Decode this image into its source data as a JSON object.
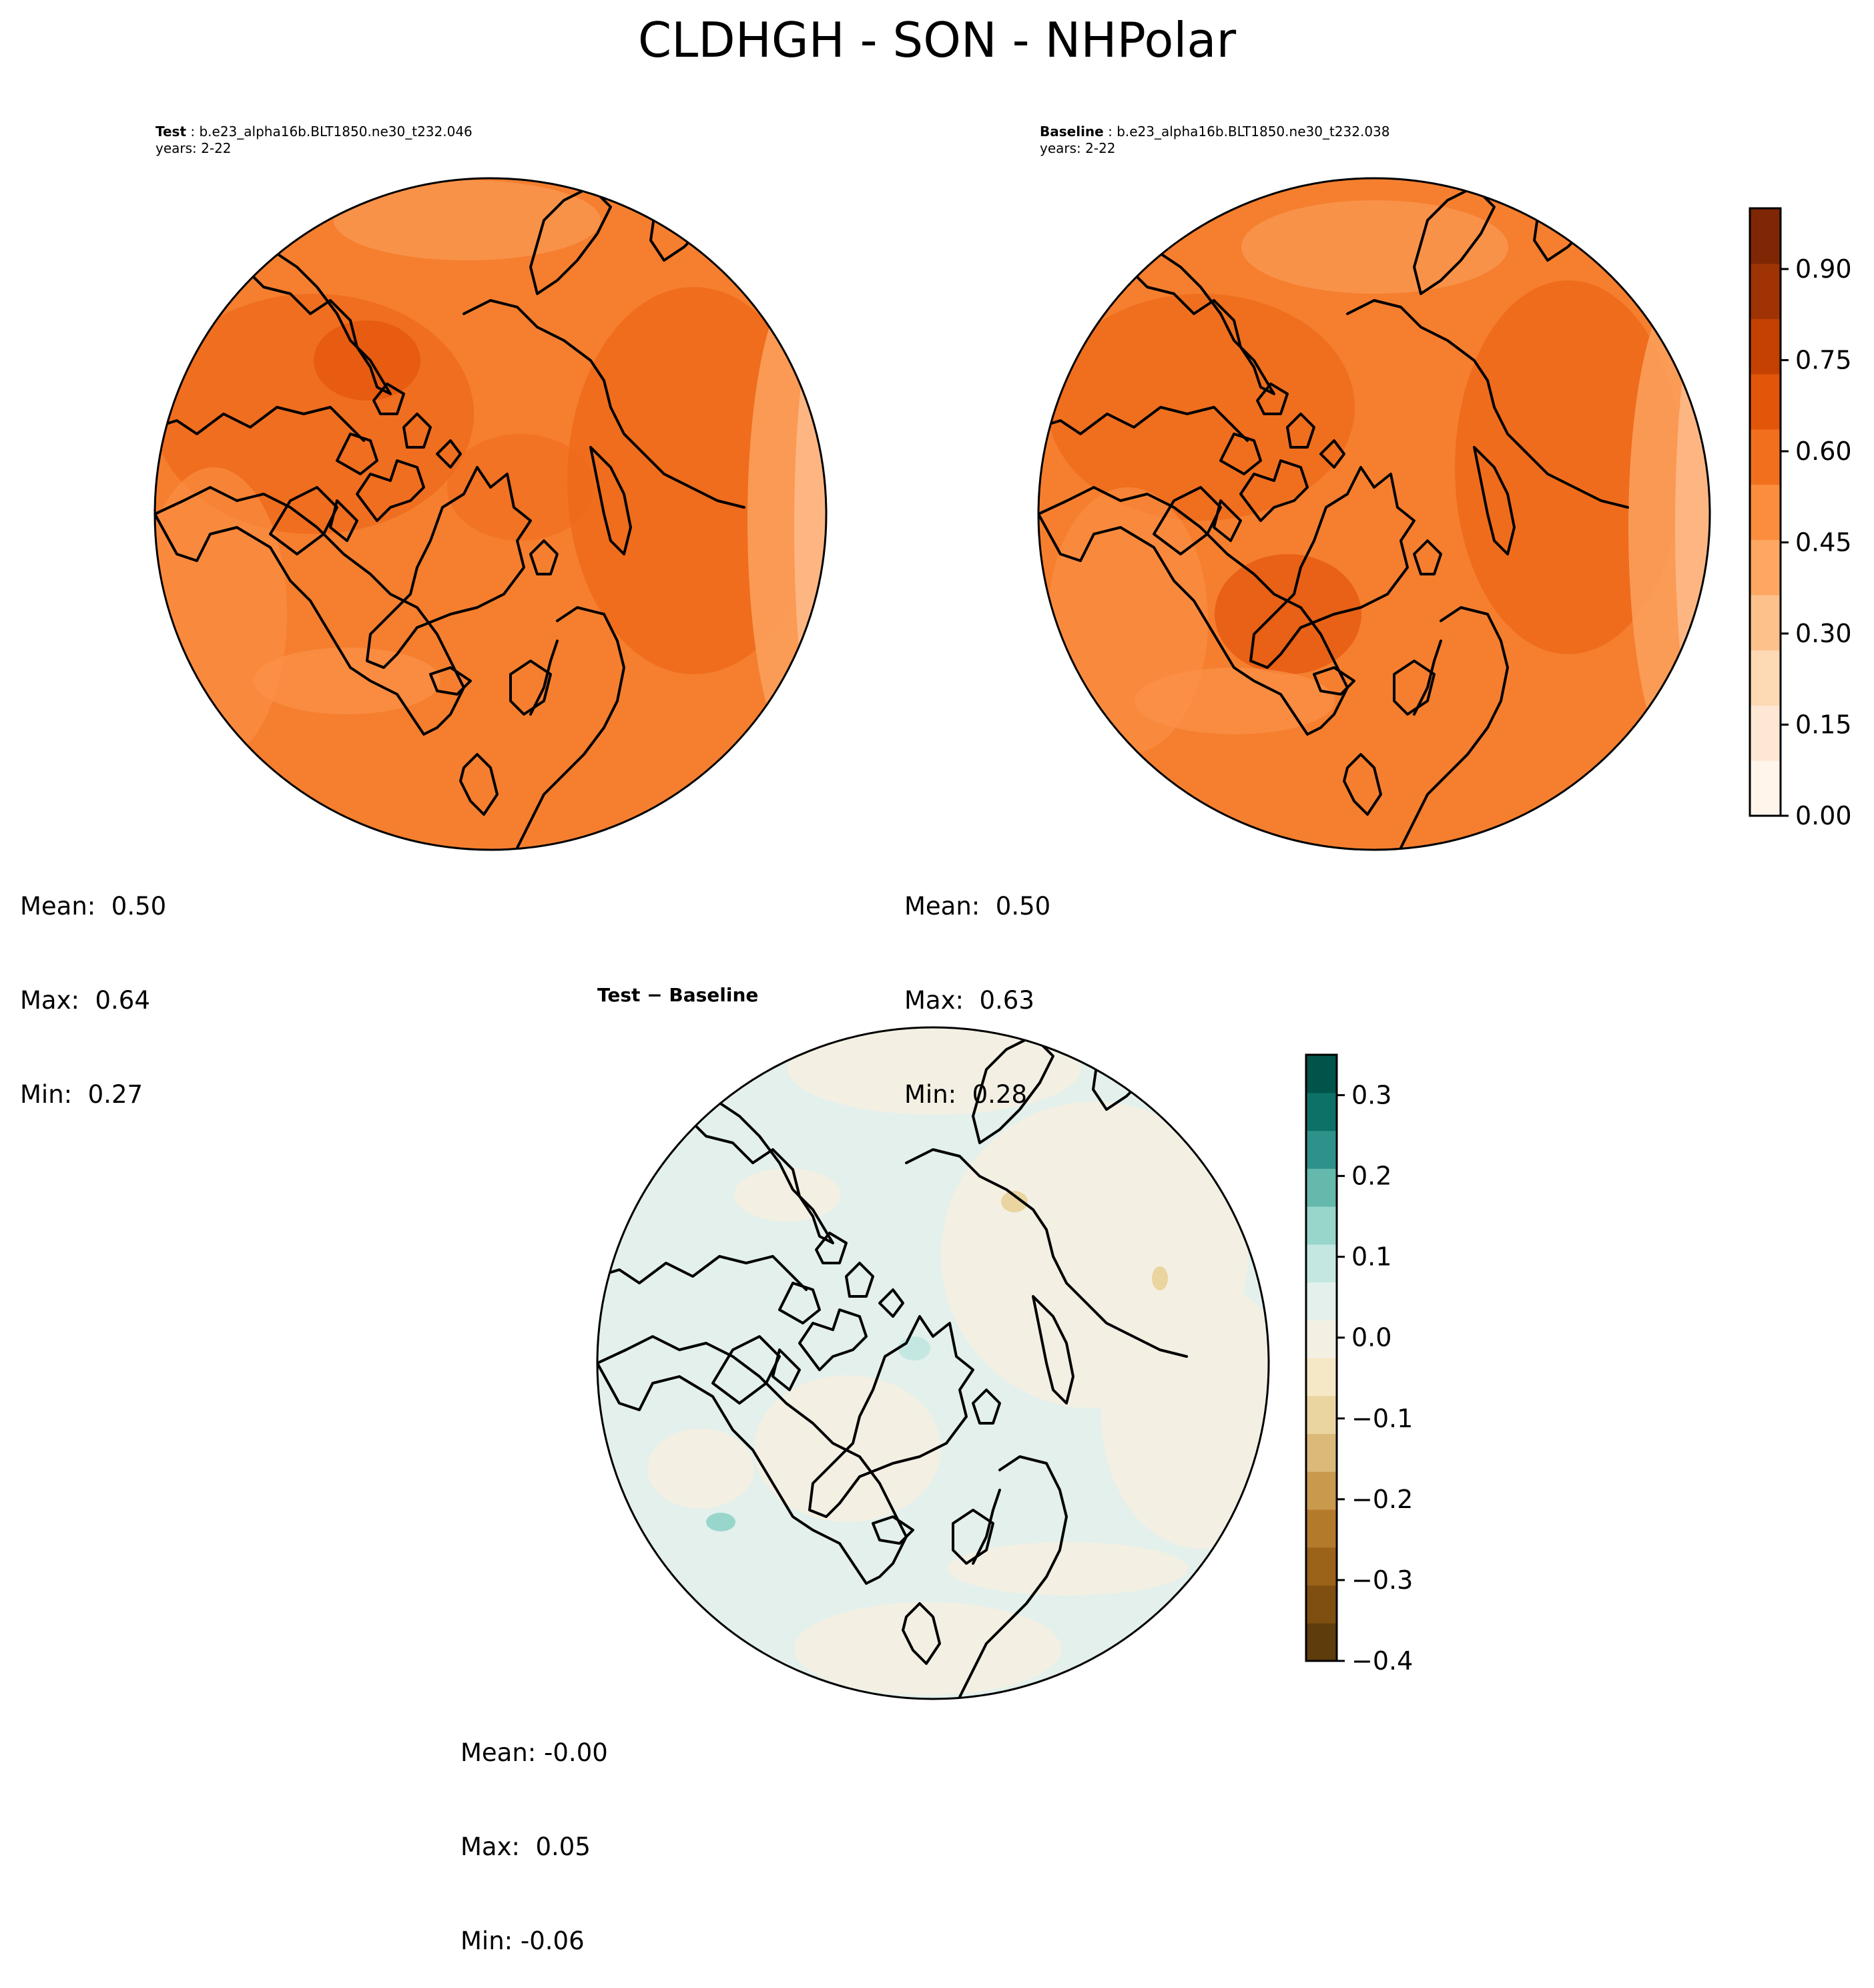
{
  "figure": {
    "title": "CLDHGH - SON - NHPolar"
  },
  "panels": {
    "test": {
      "label": "Test",
      "case": "b.e23_alpha16b.BLT1850.ne30_t232.046",
      "years": "years: 2-22",
      "stats": {
        "mean": "Mean:  0.50",
        "max": "Max:  0.64",
        "min": "Min:  0.27"
      },
      "field_range": [
        0.27,
        0.64
      ]
    },
    "baseline": {
      "label": "Baseline",
      "case": "b.e23_alpha16b.BLT1850.ne30_t232.038",
      "years": "years: 2-22",
      "stats": {
        "mean": "Mean:  0.50",
        "max": "Max:  0.63",
        "min": "Min:  0.28"
      },
      "field_range": [
        0.28,
        0.63
      ]
    },
    "diff": {
      "label": "Test − Baseline",
      "stats": {
        "mean": "Mean: -0.00",
        "max": "Max:  0.05",
        "min": "Min: -0.06"
      },
      "field_range": [
        -0.06,
        0.05
      ]
    }
  },
  "colorbars": {
    "main": {
      "colormap": "Oranges",
      "range": [
        0.0,
        1.0
      ],
      "ticks": [
        "0.00",
        "0.15",
        "0.30",
        "0.45",
        "0.60",
        "0.75",
        "0.90"
      ],
      "colors": [
        "#fff5eb",
        "#fee8d3",
        "#fdd9b4",
        "#fdc28c",
        "#fda762",
        "#fb8d3d",
        "#f2701d",
        "#e25609",
        "#c44103",
        "#9f3303",
        "#7f2704"
      ]
    },
    "diff": {
      "colormap": "BrBG",
      "range": [
        -0.4,
        0.35
      ],
      "ticks": [
        "−0.4",
        "−0.3",
        "−0.2",
        "−0.1",
        "0.0",
        "0.1",
        "0.2",
        "0.3"
      ],
      "colors": [
        "#5e3c0c",
        "#7f4e11",
        "#9b6219",
        "#b47a2c",
        "#c9994e",
        "#dbb978",
        "#ead4a0",
        "#f5e8c6",
        "#f3f0e3",
        "#e3f0ec",
        "#c4e8e1",
        "#98d6cb",
        "#65b8ac",
        "#2f928a",
        "#0d7168",
        "#00544a"
      ]
    }
  }
}
